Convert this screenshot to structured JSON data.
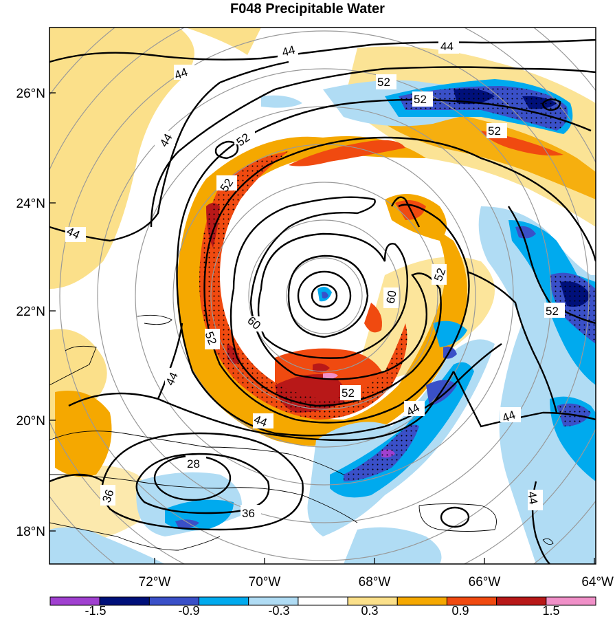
{
  "title": "F048 Precipitable Water",
  "lon_ticks": [
    "72°W",
    "70°W",
    "68°W",
    "66°W",
    "64°W"
  ],
  "lat_ticks": [
    "26°N",
    "24°N",
    "22°N",
    "20°N",
    "18°N"
  ],
  "contour_labels": [
    "44",
    "44",
    "44",
    "44",
    "44",
    "52",
    "52",
    "52",
    "52",
    "52",
    "60",
    "60",
    "52",
    "52",
    "44",
    "44",
    "44",
    "44",
    "28",
    "36",
    "36",
    "52"
  ],
  "colorbar": {
    "labels": [
      "-1.5",
      "-0.9",
      "-0.3",
      "0.3",
      "0.9",
      "1.5"
    ],
    "colors": [
      "#a040d0",
      "#00107a",
      "#3a50c8",
      "#00aaee",
      "#b0dcf4",
      "#ffffff",
      "#fbe08a",
      "#f5a800",
      "#f04a10",
      "#b81818",
      "#f090c8"
    ]
  },
  "colors": {
    "pos_light": "#fbe08a",
    "pos_orange": "#f5a800",
    "pos_red": "#f04a10",
    "pos_darkred": "#b81818",
    "pos_pink": "#f090c8",
    "neg_light": "#b0dcf4",
    "neg_mid": "#00aaee",
    "neg_blue": "#3a50c8",
    "neg_navy": "#00107a",
    "neg_purple": "#a040d0"
  }
}
